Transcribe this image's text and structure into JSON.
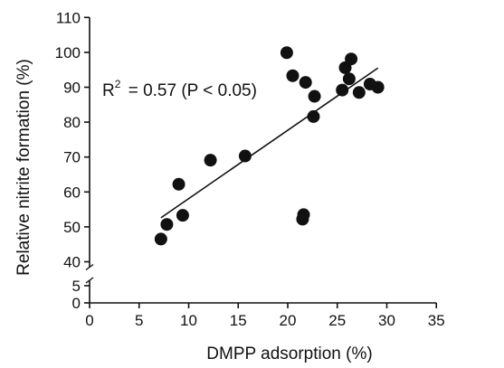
{
  "chart_data": {
    "type": "scatter",
    "xlabel": "DMPP adsorption (%)",
    "ylabel": "Relative nitrite formation (%)",
    "xlim": [
      0,
      35
    ],
    "x_ticks": [
      0,
      5,
      10,
      15,
      20,
      25,
      30,
      35
    ],
    "y_ticks_upper": [
      40,
      50,
      60,
      70,
      80,
      90,
      100,
      110
    ],
    "y_ticks_lower": [
      0,
      5
    ],
    "y_axis_break": [
      5,
      40
    ],
    "grid": false,
    "annotation": {
      "r_label": "R",
      "r_sup": "2",
      "rest": " = 0.57 (P < 0.05)"
    },
    "points": [
      {
        "x": 7.2,
        "y": 46.5
      },
      {
        "x": 7.8,
        "y": 50.7
      },
      {
        "x": 9.0,
        "y": 62.2
      },
      {
        "x": 9.4,
        "y": 53.3
      },
      {
        "x": 12.2,
        "y": 69.1
      },
      {
        "x": 15.7,
        "y": 70.3
      },
      {
        "x": 19.9,
        "y": 99.9
      },
      {
        "x": 20.5,
        "y": 93.3
      },
      {
        "x": 21.5,
        "y": 52.2
      },
      {
        "x": 21.6,
        "y": 53.5
      },
      {
        "x": 21.8,
        "y": 91.4
      },
      {
        "x": 22.6,
        "y": 81.6
      },
      {
        "x": 22.7,
        "y": 87.4
      },
      {
        "x": 25.5,
        "y": 89.2
      },
      {
        "x": 25.8,
        "y": 95.6
      },
      {
        "x": 26.2,
        "y": 92.4
      },
      {
        "x": 26.4,
        "y": 98.1
      },
      {
        "x": 27.2,
        "y": 88.5
      },
      {
        "x": 28.3,
        "y": 90.9
      },
      {
        "x": 29.1,
        "y": 90.0
      }
    ],
    "fit_line": {
      "x": [
        7.2,
        29.1
      ],
      "y": [
        52.6,
        95.5
      ]
    }
  }
}
